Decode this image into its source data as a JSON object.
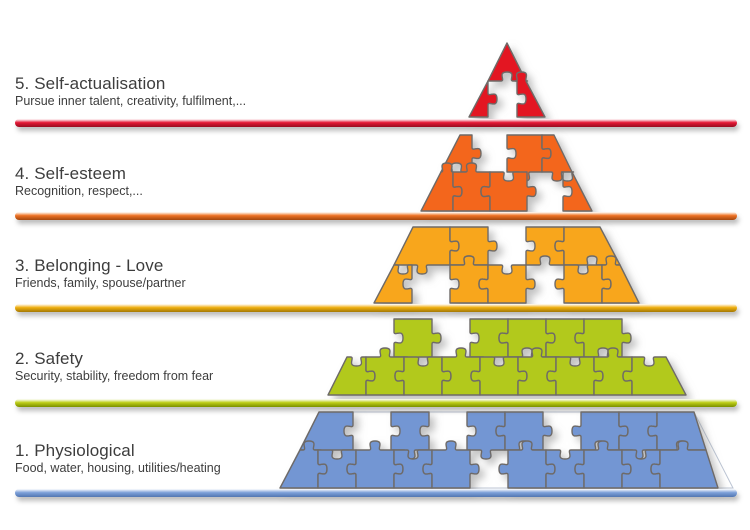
{
  "diagram": {
    "kind": "maslow-hierarchy-puzzle-pyramid",
    "text_color": "#3d3d3d"
  },
  "levels": [
    {
      "number": 5,
      "title": "5. Self-actualisation",
      "subtitle": "Pursue inner talent, creativity, fulfilment,...",
      "piece_color": "#e31424",
      "line_light": "#f6b6c0",
      "line_main": "#e51735",
      "line_dark": "#9c0e22"
    },
    {
      "number": 4,
      "title": "4. Self-esteem",
      "subtitle": "Recognition, respect,...",
      "piece_color": "#f3661e",
      "line_light": "#fad2b5",
      "line_main": "#ee7123",
      "line_dark": "#a84a10"
    },
    {
      "number": 3,
      "title": "3. Belonging - Love",
      "subtitle": "Friends, family, spouse/partner",
      "piece_color": "#f8a61d",
      "line_light": "#fbe3ae",
      "line_main": "#efae0d",
      "line_dark": "#a87c06"
    },
    {
      "number": 2,
      "title": "2. Safety",
      "subtitle": "Security, stability, freedom from fear",
      "piece_color": "#b2c91f",
      "line_light": "#e9f0b4",
      "line_main": "#bdcd17",
      "line_dark": "#7f9400"
    },
    {
      "number": 1,
      "title": "1. Physiological",
      "subtitle": "Food, water, housing, utilities/heating",
      "piece_color": "#7396d3",
      "line_light": "#cfdcf1",
      "line_main": "#7da0d9",
      "line_dark": "#5579b4"
    }
  ]
}
